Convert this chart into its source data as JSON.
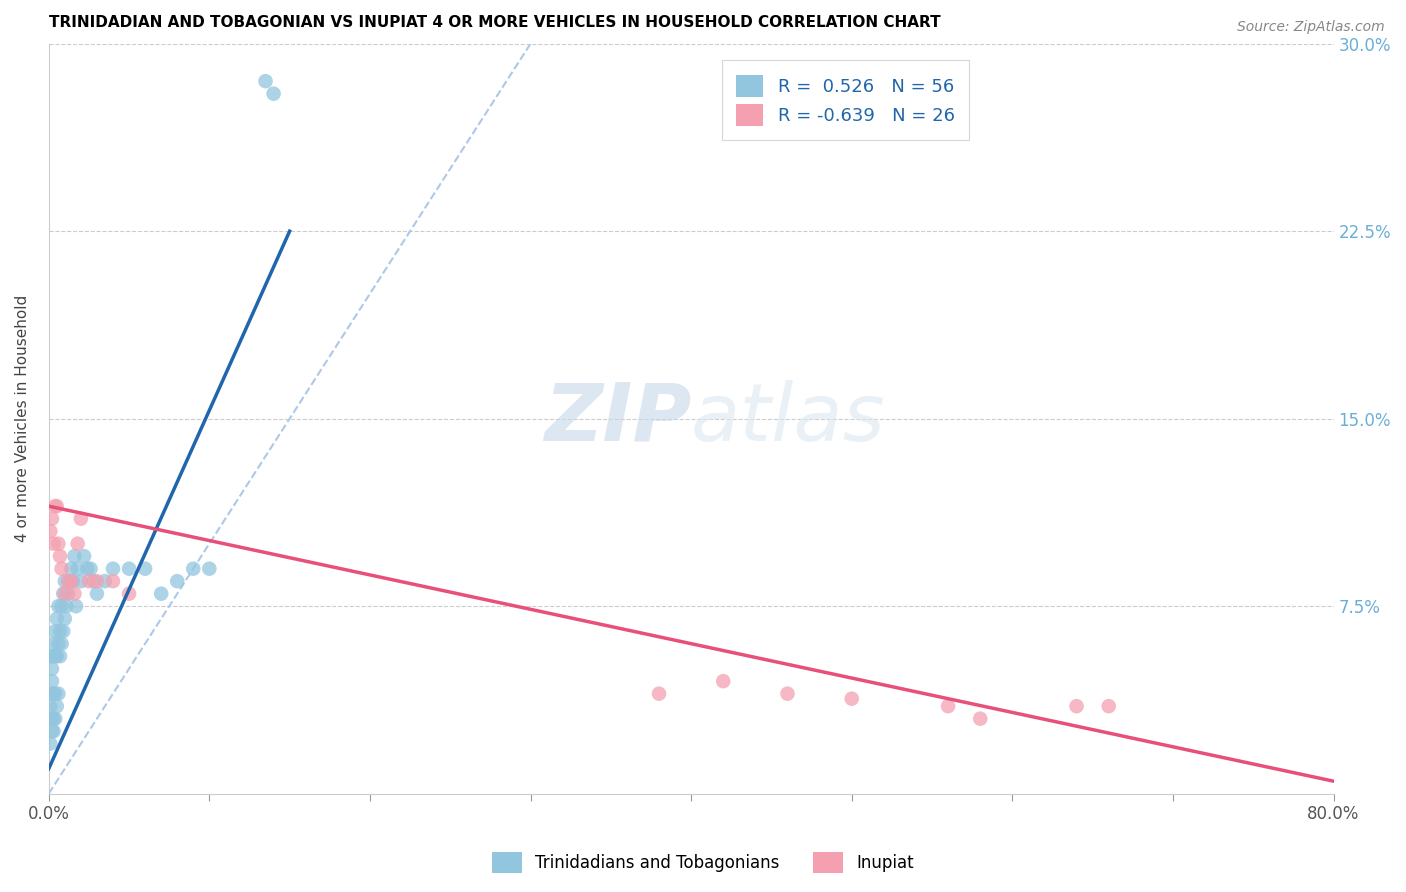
{
  "title": "TRINIDADIAN AND TOBAGONIAN VS INUPIAT 4 OR MORE VEHICLES IN HOUSEHOLD CORRELATION CHART",
  "source": "Source: ZipAtlas.com",
  "ylabel": "4 or more Vehicles in Household",
  "xlabel_blue": "Trinidadians and Tobagonians",
  "xlabel_pink": "Inupiat",
  "xlim": [
    0.0,
    0.8
  ],
  "ylim": [
    0.0,
    0.3
  ],
  "xticks": [
    0.0,
    0.1,
    0.2,
    0.3,
    0.4,
    0.5,
    0.6,
    0.7,
    0.8
  ],
  "yticks": [
    0.0,
    0.075,
    0.15,
    0.225,
    0.3
  ],
  "xtick_labels": [
    "0.0%",
    "",
    "",
    "",
    "",
    "",
    "",
    "",
    "80.0%"
  ],
  "ytick_labels": [
    "",
    "7.5%",
    "15.0%",
    "22.5%",
    "30.0%"
  ],
  "blue_R": 0.526,
  "blue_N": 56,
  "pink_R": -0.639,
  "pink_N": 26,
  "blue_color": "#92c5de",
  "pink_color": "#f4a0b0",
  "blue_line_color": "#2166ac",
  "pink_line_color": "#e8507a",
  "dashed_line_color": "#aec8e8",
  "legend_text_color": "#2166ac",
  "watermark_zip": "ZIP",
  "watermark_atlas": "atlas",
  "blue_scatter_x": [
    0.001,
    0.001,
    0.001,
    0.002,
    0.002,
    0.002,
    0.002,
    0.002,
    0.002,
    0.003,
    0.003,
    0.003,
    0.003,
    0.003,
    0.004,
    0.004,
    0.004,
    0.004,
    0.005,
    0.005,
    0.005,
    0.006,
    0.006,
    0.006,
    0.007,
    0.007,
    0.008,
    0.008,
    0.009,
    0.009,
    0.01,
    0.01,
    0.011,
    0.012,
    0.013,
    0.014,
    0.015,
    0.016,
    0.017,
    0.018,
    0.02,
    0.022,
    0.024,
    0.026,
    0.028,
    0.03,
    0.035,
    0.04,
    0.05,
    0.06,
    0.07,
    0.08,
    0.09,
    0.1,
    0.135,
    0.14
  ],
  "blue_scatter_y": [
    0.02,
    0.03,
    0.035,
    0.025,
    0.03,
    0.04,
    0.045,
    0.05,
    0.055,
    0.025,
    0.03,
    0.04,
    0.055,
    0.06,
    0.03,
    0.04,
    0.055,
    0.065,
    0.035,
    0.055,
    0.07,
    0.04,
    0.06,
    0.075,
    0.055,
    0.065,
    0.06,
    0.075,
    0.065,
    0.08,
    0.07,
    0.085,
    0.075,
    0.08,
    0.085,
    0.09,
    0.085,
    0.095,
    0.075,
    0.09,
    0.085,
    0.095,
    0.09,
    0.09,
    0.085,
    0.08,
    0.085,
    0.09,
    0.09,
    0.09,
    0.08,
    0.085,
    0.09,
    0.09,
    0.285,
    0.28
  ],
  "pink_scatter_x": [
    0.001,
    0.002,
    0.003,
    0.004,
    0.005,
    0.006,
    0.007,
    0.008,
    0.01,
    0.012,
    0.014,
    0.016,
    0.018,
    0.02,
    0.025,
    0.03,
    0.04,
    0.05,
    0.38,
    0.42,
    0.46,
    0.5,
    0.56,
    0.58,
    0.64,
    0.66
  ],
  "pink_scatter_y": [
    0.105,
    0.11,
    0.1,
    0.115,
    0.115,
    0.1,
    0.095,
    0.09,
    0.08,
    0.085,
    0.085,
    0.08,
    0.1,
    0.11,
    0.085,
    0.085,
    0.085,
    0.08,
    0.04,
    0.045,
    0.04,
    0.038,
    0.035,
    0.03,
    0.035,
    0.035
  ],
  "blue_line_x0": 0.0,
  "blue_line_y0": 0.01,
  "blue_line_x1": 0.15,
  "blue_line_y1": 0.225,
  "pink_line_x0": 0.0,
  "pink_line_y0": 0.115,
  "pink_line_x1": 0.8,
  "pink_line_y1": 0.005,
  "dash_line_x0": 0.0,
  "dash_line_y0": 0.0,
  "dash_line_x1": 0.3,
  "dash_line_y1": 0.3
}
